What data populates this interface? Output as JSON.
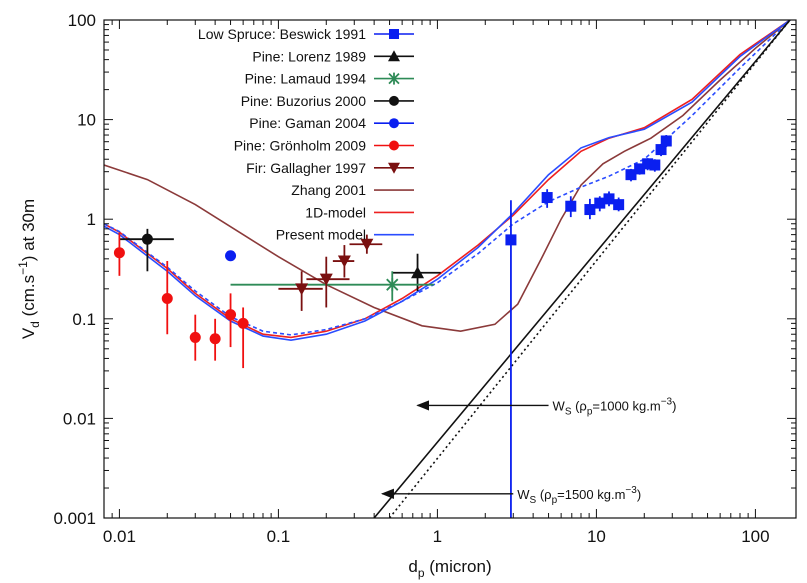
{
  "chart_data": {
    "type": "scatter",
    "x_scale": "log",
    "y_scale": "log",
    "xlim": [
      0.008,
      180
    ],
    "ylim": [
      0.001,
      100
    ],
    "xlabel": "d_p (micron)",
    "ylabel": "V_d (cm.s^-1) at 30m",
    "x_ticks": [
      {
        "value": 0.01,
        "label": "0.01"
      },
      {
        "value": 0.1,
        "label": "0.1"
      },
      {
        "value": 1,
        "label": "1"
      },
      {
        "value": 10,
        "label": "10"
      },
      {
        "value": 100,
        "label": "100"
      }
    ],
    "y_ticks": [
      {
        "value": 0.001,
        "label": "0.001"
      },
      {
        "value": 0.01,
        "label": "0.01"
      },
      {
        "value": 0.1,
        "label": "0.1"
      },
      {
        "value": 1,
        "label": "1"
      },
      {
        "value": 10,
        "label": "10"
      },
      {
        "value": 100,
        "label": "100"
      }
    ],
    "legend_position": "top-left",
    "series": [
      {
        "name": "Low Spruce: Beswick 1991",
        "kind": "points",
        "marker": "square",
        "color": "#0a1ff0",
        "points": [
          {
            "x": 2.9,
            "y": 0.62,
            "ylo": 0.001,
            "yhi": 1.55
          },
          {
            "x": 4.9,
            "y": 1.65,
            "ylo": 1.3,
            "yhi": 2.0
          },
          {
            "x": 6.9,
            "y": 1.35,
            "ylo": 1.05,
            "yhi": 1.7
          },
          {
            "x": 9.1,
            "y": 1.25,
            "ylo": 1.0,
            "yhi": 1.6
          },
          {
            "x": 10.5,
            "y": 1.45,
            "ylo": 1.2,
            "yhi": 1.7
          },
          {
            "x": 12.0,
            "y": 1.6,
            "ylo": 1.35,
            "yhi": 1.9
          },
          {
            "x": 13.8,
            "y": 1.4,
            "ylo": 1.2,
            "yhi": 1.65
          },
          {
            "x": 16.5,
            "y": 2.8,
            "ylo": 2.4,
            "yhi": 3.2
          },
          {
            "x": 18.7,
            "y": 3.2,
            "ylo": 2.8,
            "yhi": 3.6
          },
          {
            "x": 21.0,
            "y": 3.6,
            "ylo": 3.1,
            "yhi": 4.1
          },
          {
            "x": 23.3,
            "y": 3.5,
            "ylo": 3.0,
            "yhi": 4.0
          },
          {
            "x": 25.5,
            "y": 5.0,
            "ylo": 4.3,
            "yhi": 5.7
          },
          {
            "x": 27.5,
            "y": 6.1,
            "ylo": 5.3,
            "yhi": 7.0
          }
        ]
      },
      {
        "name": "Pine: Lorenz 1989",
        "kind": "points",
        "marker": "triangle",
        "color": "#111111",
        "points": [
          {
            "x": 0.75,
            "y": 0.29,
            "ylo": 0.19,
            "yhi": 0.45,
            "xlo": 0.52,
            "xhi": 1.05
          }
        ]
      },
      {
        "name": "Pine: Lamaud 1994",
        "kind": "points",
        "marker": "asterisk",
        "color": "#2e8b57",
        "points": [
          {
            "x": 0.52,
            "y": 0.22,
            "ylo": 0.15,
            "yhi": 0.3,
            "xlo": 0.05,
            "xhi": 0.95
          }
        ]
      },
      {
        "name": "Pine: Buzorius 2000",
        "kind": "points",
        "marker": "circle",
        "color": "#111111",
        "points": [
          {
            "x": 0.015,
            "y": 0.63,
            "ylo": 0.3,
            "yhi": 0.8,
            "xlo": 0.01,
            "xhi": 0.022
          }
        ]
      },
      {
        "name": "Pine: Gaman 2004",
        "kind": "points",
        "marker": "circle",
        "color": "#0a1ff0",
        "points": [
          {
            "x": 0.05,
            "y": 0.43
          }
        ]
      },
      {
        "name": "Pine: Grönholm 2009",
        "kind": "points",
        "marker": "circle",
        "color": "#f01010",
        "points": [
          {
            "x": 0.01,
            "y": 0.46,
            "ylo": 0.27,
            "yhi": 0.73
          },
          {
            "x": 0.02,
            "y": 0.16,
            "ylo": 0.07,
            "yhi": 0.38
          },
          {
            "x": 0.03,
            "y": 0.065,
            "ylo": 0.038,
            "yhi": 0.11
          },
          {
            "x": 0.04,
            "y": 0.063,
            "ylo": 0.038,
            "yhi": 0.1
          },
          {
            "x": 0.05,
            "y": 0.11,
            "ylo": 0.052,
            "yhi": 0.18
          },
          {
            "x": 0.06,
            "y": 0.09,
            "ylo": 0.032,
            "yhi": 0.13
          }
        ]
      },
      {
        "name": "Fir: Gallagher 1997",
        "kind": "points",
        "marker": "triangle-down",
        "color": "#7a1010",
        "points": [
          {
            "x": 0.14,
            "y": 0.2,
            "ylo": 0.12,
            "yhi": 0.3,
            "xlo": 0.1,
            "xhi": 0.19
          },
          {
            "x": 0.2,
            "y": 0.25,
            "ylo": 0.13,
            "yhi": 0.42,
            "xlo": 0.15,
            "xhi": 0.28
          },
          {
            "x": 0.26,
            "y": 0.38,
            "ylo": 0.26,
            "yhi": 0.55,
            "xlo": 0.22,
            "xhi": 0.3
          },
          {
            "x": 0.36,
            "y": 0.56,
            "ylo": 0.45,
            "yhi": 0.7,
            "xlo": 0.28,
            "xhi": 0.45
          }
        ]
      },
      {
        "name": "Zhang 2001",
        "kind": "line",
        "color": "#8b3a3a",
        "dash": "",
        "points": [
          [
            0.008,
            3.5
          ],
          [
            0.015,
            2.5
          ],
          [
            0.03,
            1.4
          ],
          [
            0.06,
            0.7
          ],
          [
            0.1,
            0.42
          ],
          [
            0.2,
            0.22
          ],
          [
            0.4,
            0.13
          ],
          [
            0.8,
            0.085
          ],
          [
            1.4,
            0.075
          ],
          [
            2.3,
            0.088
          ],
          [
            3.2,
            0.14
          ],
          [
            4.5,
            0.4
          ],
          [
            6,
            1.0
          ],
          [
            8,
            2.2
          ],
          [
            11,
            3.6
          ],
          [
            15,
            4.8
          ],
          [
            22,
            6.5
          ],
          [
            35,
            11
          ],
          [
            60,
            25
          ],
          [
            100,
            52
          ],
          [
            165,
            100
          ]
        ]
      },
      {
        "name": "1D-model",
        "kind": "line",
        "color": "#ee2020",
        "dash": "",
        "points": [
          [
            0.008,
            0.9
          ],
          [
            0.01,
            0.74
          ],
          [
            0.02,
            0.32
          ],
          [
            0.03,
            0.18
          ],
          [
            0.05,
            0.1
          ],
          [
            0.08,
            0.07
          ],
          [
            0.12,
            0.065
          ],
          [
            0.2,
            0.075
          ],
          [
            0.35,
            0.1
          ],
          [
            0.6,
            0.16
          ],
          [
            1,
            0.27
          ],
          [
            1.8,
            0.55
          ],
          [
            3,
            1.1
          ],
          [
            5,
            2.5
          ],
          [
            8,
            4.8
          ],
          [
            12,
            6.5
          ],
          [
            20,
            8.3
          ],
          [
            40,
            16
          ],
          [
            80,
            45
          ],
          [
            165,
            100
          ]
        ]
      },
      {
        "name": "Present model",
        "kind": "line",
        "color": "#2a4cff",
        "dash": "",
        "points": [
          [
            0.008,
            0.85
          ],
          [
            0.01,
            0.7
          ],
          [
            0.02,
            0.3
          ],
          [
            0.03,
            0.17
          ],
          [
            0.05,
            0.095
          ],
          [
            0.08,
            0.067
          ],
          [
            0.12,
            0.061
          ],
          [
            0.2,
            0.07
          ],
          [
            0.35,
            0.095
          ],
          [
            0.6,
            0.15
          ],
          [
            1,
            0.25
          ],
          [
            1.8,
            0.52
          ],
          [
            3,
            1.15
          ],
          [
            5,
            2.8
          ],
          [
            8,
            5.2
          ],
          [
            12,
            6.6
          ],
          [
            20,
            8.0
          ],
          [
            40,
            15
          ],
          [
            80,
            43
          ],
          [
            165,
            100
          ]
        ]
      },
      {
        "name": "",
        "kind": "line",
        "color": "#2a4cff",
        "dash": "4 3",
        "points": [
          [
            0.008,
            0.9
          ],
          [
            0.01,
            0.75
          ],
          [
            0.02,
            0.33
          ],
          [
            0.03,
            0.19
          ],
          [
            0.05,
            0.105
          ],
          [
            0.08,
            0.075
          ],
          [
            0.12,
            0.069
          ],
          [
            0.2,
            0.078
          ],
          [
            0.35,
            0.1
          ],
          [
            0.6,
            0.15
          ],
          [
            1,
            0.23
          ],
          [
            1.8,
            0.45
          ],
          [
            3,
            0.9
          ],
          [
            5,
            1.5
          ],
          [
            8,
            2.1
          ],
          [
            12,
            2.7
          ],
          [
            20,
            4.0
          ],
          [
            40,
            11
          ],
          [
            80,
            33
          ],
          [
            165,
            100
          ]
        ]
      },
      {
        "name": "",
        "kind": "line",
        "color": "#111111",
        "dash": "",
        "points": [
          [
            0.4,
            0.001
          ],
          [
            165,
            100
          ]
        ]
      },
      {
        "name": "",
        "kind": "line",
        "color": "#111111",
        "dash": "2 3",
        "points": [
          [
            0.5,
            0.001
          ],
          [
            165,
            100
          ]
        ]
      }
    ],
    "annotations": [
      {
        "text_main": "W",
        "text_sub": "S",
        "text_rest": " (ρ",
        "text_sub2": "p",
        "text_rest2": "=1000 kg.m",
        "text_sup": "−3",
        "text_end": ")",
        "arrow_from_x": 5.0,
        "arrow_to_x": 0.75,
        "y": 0.0135
      },
      {
        "text_main": "W",
        "text_sub": "S",
        "text_rest": " (ρ",
        "text_sub2": "p",
        "text_rest2": "=1500 kg.m",
        "text_sup": "−3",
        "text_end": ")",
        "arrow_from_x": 3.0,
        "arrow_to_x": 0.45,
        "y": 0.00175
      }
    ]
  }
}
